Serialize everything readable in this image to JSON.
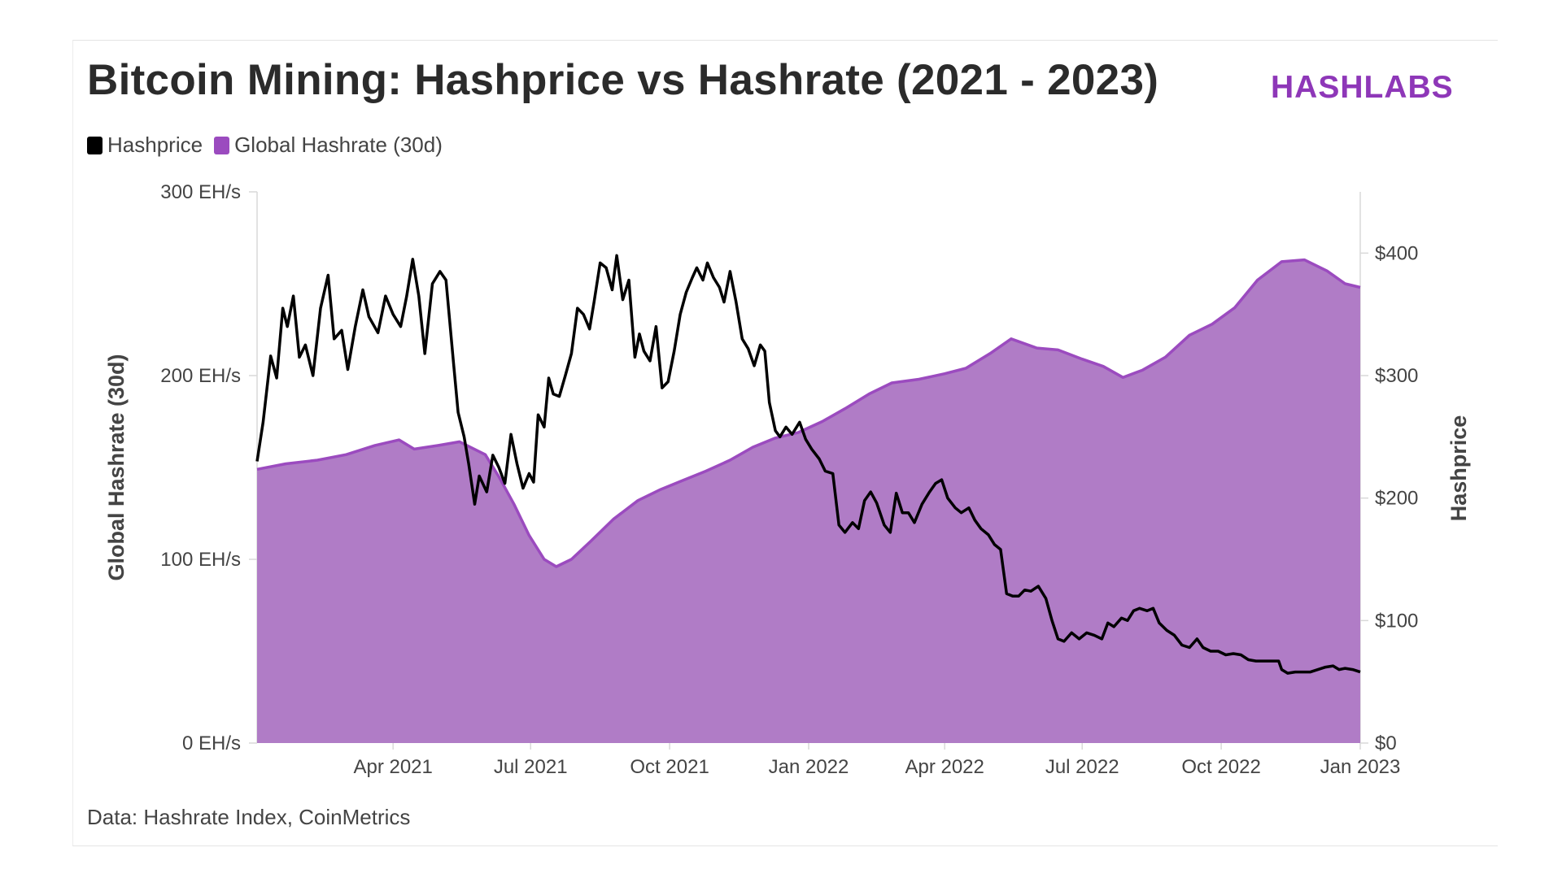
{
  "title": "Bitcoin Mining: Hashprice vs Hashrate (2021 - 2023)",
  "brand": "HASHLABS",
  "source": "Data: Hashrate Index, CoinMetrics",
  "colors": {
    "hashrate_fill": "#b07cc6",
    "hashrate_line": "#9b4bbf",
    "hashprice_line": "#000000",
    "brand": "#8e37b8"
  },
  "legend": [
    {
      "label": "Hashprice",
      "color": "#000000"
    },
    {
      "label": "Global Hashrate (30d)",
      "color": "#9b4bbf"
    }
  ],
  "chart_data": {
    "type": "area",
    "y_left": {
      "label": "Global Hashrate (30d)",
      "range": [
        0,
        300
      ],
      "ticks": [
        "300 EH/s",
        "200 EH/s",
        "100 EH/s",
        "0 EH/s"
      ],
      "tick_values": [
        300,
        200,
        100,
        0
      ]
    },
    "y_right": {
      "label": "Hashprice",
      "range": [
        0,
        450
      ],
      "ticks": [
        "$400",
        "$300",
        "$200",
        "$100",
        "$0"
      ],
      "tick_values": [
        400,
        300,
        200,
        100,
        0
      ]
    },
    "x_axis": {
      "range": [
        "2021-01-01",
        "2023-01-01"
      ],
      "ticks": [
        "Apr 2021",
        "Jul 2021",
        "Oct 2021",
        "Jan 2022",
        "Apr 2022",
        "Jul 2022",
        "Oct 2022",
        "Jan 2023"
      ],
      "tick_dates": [
        "2021-04-01",
        "2021-07-01",
        "2021-10-01",
        "2022-01-01",
        "2022-04-01",
        "2022-07-01",
        "2022-10-01",
        "2023-01-01"
      ]
    },
    "series": [
      {
        "name": "Global Hashrate (30d)",
        "axis": "left",
        "type": "area",
        "points": [
          [
            "2021-01-01",
            149
          ],
          [
            "2021-01-20",
            152
          ],
          [
            "2021-02-10",
            154
          ],
          [
            "2021-03-01",
            157
          ],
          [
            "2021-03-20",
            162
          ],
          [
            "2021-04-05",
            165
          ],
          [
            "2021-04-15",
            160
          ],
          [
            "2021-05-01",
            162
          ],
          [
            "2021-05-15",
            164
          ],
          [
            "2021-06-01",
            157
          ],
          [
            "2021-06-10",
            145
          ],
          [
            "2021-06-20",
            130
          ],
          [
            "2021-06-30",
            113
          ],
          [
            "2021-07-10",
            100
          ],
          [
            "2021-07-18",
            96
          ],
          [
            "2021-07-28",
            100
          ],
          [
            "2021-08-10",
            110
          ],
          [
            "2021-08-25",
            122
          ],
          [
            "2021-09-10",
            132
          ],
          [
            "2021-09-25",
            138
          ],
          [
            "2021-10-10",
            143
          ],
          [
            "2021-10-25",
            148
          ],
          [
            "2021-11-10",
            154
          ],
          [
            "2021-11-25",
            161
          ],
          [
            "2021-12-10",
            166
          ],
          [
            "2021-12-25",
            169
          ],
          [
            "2022-01-10",
            175
          ],
          [
            "2022-01-25",
            182
          ],
          [
            "2022-02-10",
            190
          ],
          [
            "2022-02-25",
            196
          ],
          [
            "2022-03-15",
            198
          ],
          [
            "2022-04-01",
            201
          ],
          [
            "2022-04-15",
            204
          ],
          [
            "2022-05-01",
            212
          ],
          [
            "2022-05-15",
            220
          ],
          [
            "2022-06-01",
            215
          ],
          [
            "2022-06-15",
            214
          ],
          [
            "2022-07-01",
            209
          ],
          [
            "2022-07-15",
            205
          ],
          [
            "2022-07-28",
            199
          ],
          [
            "2022-08-10",
            203
          ],
          [
            "2022-08-25",
            210
          ],
          [
            "2022-09-10",
            222
          ],
          [
            "2022-09-25",
            228
          ],
          [
            "2022-10-10",
            237
          ],
          [
            "2022-10-25",
            252
          ],
          [
            "2022-11-10",
            262
          ],
          [
            "2022-11-25",
            263
          ],
          [
            "2022-12-10",
            257
          ],
          [
            "2022-12-22",
            250
          ],
          [
            "2023-01-01",
            248
          ]
        ]
      },
      {
        "name": "Hashprice",
        "axis": "right",
        "type": "line",
        "points": [
          [
            "2021-01-01",
            230
          ],
          [
            "2021-01-05",
            262
          ],
          [
            "2021-01-10",
            316
          ],
          [
            "2021-01-14",
            298
          ],
          [
            "2021-01-18",
            355
          ],
          [
            "2021-01-21",
            340
          ],
          [
            "2021-01-25",
            365
          ],
          [
            "2021-01-29",
            315
          ],
          [
            "2021-02-02",
            325
          ],
          [
            "2021-02-07",
            300
          ],
          [
            "2021-02-12",
            355
          ],
          [
            "2021-02-17",
            382
          ],
          [
            "2021-02-21",
            330
          ],
          [
            "2021-02-26",
            337
          ],
          [
            "2021-03-02",
            305
          ],
          [
            "2021-03-07",
            340
          ],
          [
            "2021-03-12",
            370
          ],
          [
            "2021-03-16",
            348
          ],
          [
            "2021-03-22",
            335
          ],
          [
            "2021-03-27",
            365
          ],
          [
            "2021-04-01",
            350
          ],
          [
            "2021-04-06",
            340
          ],
          [
            "2021-04-10",
            365
          ],
          [
            "2021-04-14",
            395
          ],
          [
            "2021-04-18",
            365
          ],
          [
            "2021-04-22",
            318
          ],
          [
            "2021-04-27",
            375
          ],
          [
            "2021-05-02",
            385
          ],
          [
            "2021-05-06",
            378
          ],
          [
            "2021-05-11",
            310
          ],
          [
            "2021-05-14",
            270
          ],
          [
            "2021-05-18",
            250
          ],
          [
            "2021-05-21",
            228
          ],
          [
            "2021-05-25",
            195
          ],
          [
            "2021-05-28",
            218
          ],
          [
            "2021-06-02",
            205
          ],
          [
            "2021-06-06",
            235
          ],
          [
            "2021-06-10",
            225
          ],
          [
            "2021-06-14",
            212
          ],
          [
            "2021-06-18",
            252
          ],
          [
            "2021-06-22",
            228
          ],
          [
            "2021-06-26",
            208
          ],
          [
            "2021-06-30",
            220
          ],
          [
            "2021-07-03",
            213
          ],
          [
            "2021-07-06",
            268
          ],
          [
            "2021-07-10",
            258
          ],
          [
            "2021-07-13",
            298
          ],
          [
            "2021-07-16",
            285
          ],
          [
            "2021-07-20",
            283
          ],
          [
            "2021-07-24",
            300
          ],
          [
            "2021-07-28",
            318
          ],
          [
            "2021-08-01",
            355
          ],
          [
            "2021-08-05",
            350
          ],
          [
            "2021-08-09",
            338
          ],
          [
            "2021-08-12",
            360
          ],
          [
            "2021-08-16",
            392
          ],
          [
            "2021-08-20",
            388
          ],
          [
            "2021-08-24",
            370
          ],
          [
            "2021-08-27",
            398
          ],
          [
            "2021-08-31",
            362
          ],
          [
            "2021-09-04",
            378
          ],
          [
            "2021-09-08",
            315
          ],
          [
            "2021-09-11",
            334
          ],
          [
            "2021-09-14",
            320
          ],
          [
            "2021-09-18",
            312
          ],
          [
            "2021-09-22",
            340
          ],
          [
            "2021-09-26",
            290
          ],
          [
            "2021-09-30",
            295
          ],
          [
            "2021-10-04",
            320
          ],
          [
            "2021-10-08",
            350
          ],
          [
            "2021-10-12",
            368
          ],
          [
            "2021-10-16",
            380
          ],
          [
            "2021-10-19",
            388
          ],
          [
            "2021-10-23",
            378
          ],
          [
            "2021-10-26",
            392
          ],
          [
            "2021-10-30",
            380
          ],
          [
            "2021-11-03",
            372
          ],
          [
            "2021-11-06",
            360
          ],
          [
            "2021-11-10",
            385
          ],
          [
            "2021-11-14",
            360
          ],
          [
            "2021-11-18",
            330
          ],
          [
            "2021-11-22",
            322
          ],
          [
            "2021-11-26",
            308
          ],
          [
            "2021-11-30",
            325
          ],
          [
            "2021-12-03",
            320
          ],
          [
            "2021-12-06",
            278
          ],
          [
            "2021-12-10",
            255
          ],
          [
            "2021-12-13",
            250
          ],
          [
            "2021-12-17",
            258
          ],
          [
            "2021-12-21",
            252
          ],
          [
            "2021-12-26",
            262
          ],
          [
            "2021-12-30",
            248
          ],
          [
            "2022-01-03",
            240
          ],
          [
            "2022-01-08",
            232
          ],
          [
            "2022-01-12",
            222
          ],
          [
            "2022-01-17",
            220
          ],
          [
            "2022-01-21",
            178
          ],
          [
            "2022-01-25",
            172
          ],
          [
            "2022-01-30",
            180
          ],
          [
            "2022-02-03",
            175
          ],
          [
            "2022-02-07",
            198
          ],
          [
            "2022-02-11",
            205
          ],
          [
            "2022-02-15",
            196
          ],
          [
            "2022-02-20",
            178
          ],
          [
            "2022-02-24",
            172
          ],
          [
            "2022-02-28",
            204
          ],
          [
            "2022-03-04",
            188
          ],
          [
            "2022-03-08",
            188
          ],
          [
            "2022-03-12",
            180
          ],
          [
            "2022-03-17",
            195
          ],
          [
            "2022-03-22",
            205
          ],
          [
            "2022-03-26",
            212
          ],
          [
            "2022-03-30",
            215
          ],
          [
            "2022-04-03",
            200
          ],
          [
            "2022-04-08",
            192
          ],
          [
            "2022-04-12",
            188
          ],
          [
            "2022-04-17",
            192
          ],
          [
            "2022-04-21",
            182
          ],
          [
            "2022-04-25",
            175
          ],
          [
            "2022-04-30",
            170
          ],
          [
            "2022-05-04",
            162
          ],
          [
            "2022-05-08",
            158
          ],
          [
            "2022-05-12",
            122
          ],
          [
            "2022-05-16",
            120
          ],
          [
            "2022-05-20",
            120
          ],
          [
            "2022-05-24",
            125
          ],
          [
            "2022-05-28",
            124
          ],
          [
            "2022-06-02",
            128
          ],
          [
            "2022-06-07",
            118
          ],
          [
            "2022-06-11",
            100
          ],
          [
            "2022-06-15",
            85
          ],
          [
            "2022-06-19",
            83
          ],
          [
            "2022-06-24",
            90
          ],
          [
            "2022-06-29",
            85
          ],
          [
            "2022-07-04",
            90
          ],
          [
            "2022-07-09",
            88
          ],
          [
            "2022-07-14",
            85
          ],
          [
            "2022-07-18",
            98
          ],
          [
            "2022-07-22",
            95
          ],
          [
            "2022-07-27",
            102
          ],
          [
            "2022-07-31",
            100
          ],
          [
            "2022-08-04",
            108
          ],
          [
            "2022-08-08",
            110
          ],
          [
            "2022-08-13",
            108
          ],
          [
            "2022-08-17",
            110
          ],
          [
            "2022-08-21",
            98
          ],
          [
            "2022-08-26",
            92
          ],
          [
            "2022-08-31",
            88
          ],
          [
            "2022-09-05",
            80
          ],
          [
            "2022-09-10",
            78
          ],
          [
            "2022-09-15",
            85
          ],
          [
            "2022-09-19",
            78
          ],
          [
            "2022-09-24",
            75
          ],
          [
            "2022-09-29",
            75
          ],
          [
            "2022-10-04",
            72
          ],
          [
            "2022-10-09",
            73
          ],
          [
            "2022-10-14",
            72
          ],
          [
            "2022-10-19",
            68
          ],
          [
            "2022-10-24",
            67
          ],
          [
            "2022-10-29",
            67
          ],
          [
            "2022-11-03",
            67
          ],
          [
            "2022-11-08",
            67
          ],
          [
            "2022-11-10",
            60
          ],
          [
            "2022-11-14",
            57
          ],
          [
            "2022-11-19",
            58
          ],
          [
            "2022-11-24",
            58
          ],
          [
            "2022-11-29",
            58
          ],
          [
            "2022-12-04",
            60
          ],
          [
            "2022-12-09",
            62
          ],
          [
            "2022-12-14",
            63
          ],
          [
            "2022-12-18",
            60
          ],
          [
            "2022-12-22",
            61
          ],
          [
            "2022-12-27",
            60
          ],
          [
            "2023-01-01",
            58
          ]
        ]
      }
    ]
  }
}
